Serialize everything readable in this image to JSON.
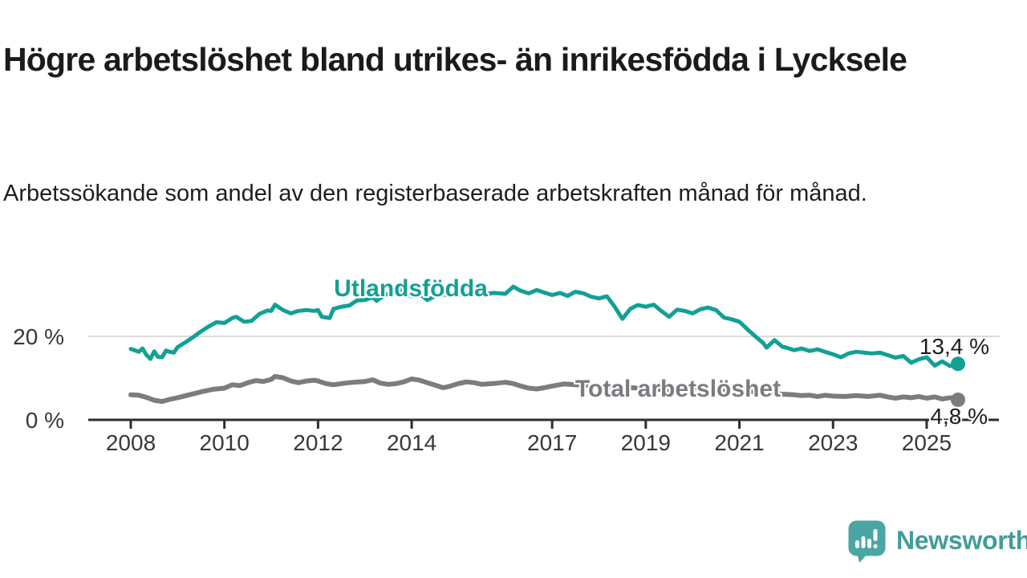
{
  "title": "Högre arbetslöshet bland utrikes- än inrikesfödda i Lycksele",
  "subtitle": "Arbetssökande som andel av den registerbaserade arbetskraften månad för månad.",
  "colors": {
    "accent_teal": "#12A096",
    "series_gray": "#7B7B80",
    "axis": "#2E2E2E",
    "gridline": "#DBDBDB",
    "title_text": "#1B1B1B",
    "tick_text": "#383838",
    "logo_teal": "#4AA6A2"
  },
  "branding": {
    "logo_text": "Newsworthy",
    "logo_icon": "bar-chart-speech-bubble-icon"
  },
  "chart_data": {
    "type": "line",
    "unit": "%",
    "grid": "horizontal-20-only",
    "legend_position": "inline-labels-on-lines",
    "x_axis": {
      "range": [
        2007.9,
        2025.9
      ],
      "ticks": [
        2008,
        2010,
        2012,
        2014,
        2017,
        2019,
        2021,
        2023,
        2025
      ]
    },
    "y_axis": {
      "range": [
        0,
        35
      ],
      "ticks": [
        {
          "value": 0,
          "label": "0 %"
        },
        {
          "value": 20,
          "label": "20 %"
        }
      ]
    },
    "series": [
      {
        "name": "Utlandsfödda",
        "color": "#12A096",
        "stroke_width": 5,
        "end_value": 13.4,
        "end_label": "13,4 %",
        "points": [
          [
            2008.0,
            17.0
          ],
          [
            2008.08,
            16.7
          ],
          [
            2008.17,
            16.3
          ],
          [
            2008.25,
            17.1
          ],
          [
            2008.33,
            15.6
          ],
          [
            2008.42,
            14.6
          ],
          [
            2008.5,
            16.4
          ],
          [
            2008.58,
            15.1
          ],
          [
            2008.67,
            15.0
          ],
          [
            2008.75,
            16.6
          ],
          [
            2008.83,
            16.3
          ],
          [
            2008.92,
            16.1
          ],
          [
            2009.0,
            17.4
          ],
          [
            2009.17,
            18.6
          ],
          [
            2009.33,
            19.8
          ],
          [
            2009.5,
            21.2
          ],
          [
            2009.67,
            22.4
          ],
          [
            2009.83,
            23.4
          ],
          [
            2010.0,
            23.2
          ],
          [
            2010.17,
            24.4
          ],
          [
            2010.25,
            24.7
          ],
          [
            2010.42,
            23.5
          ],
          [
            2010.58,
            23.7
          ],
          [
            2010.75,
            25.4
          ],
          [
            2010.92,
            26.2
          ],
          [
            2011.0,
            26.1
          ],
          [
            2011.08,
            27.6
          ],
          [
            2011.25,
            26.3
          ],
          [
            2011.42,
            25.5
          ],
          [
            2011.58,
            26.1
          ],
          [
            2011.75,
            26.3
          ],
          [
            2011.92,
            26.1
          ],
          [
            2012.0,
            26.3
          ],
          [
            2012.08,
            24.7
          ],
          [
            2012.25,
            24.4
          ],
          [
            2012.33,
            26.6
          ],
          [
            2012.5,
            27.1
          ],
          [
            2012.67,
            27.4
          ],
          [
            2012.83,
            28.6
          ],
          [
            2013.0,
            28.7
          ],
          [
            2013.17,
            29.4
          ],
          [
            2013.25,
            28.5
          ],
          [
            2013.42,
            29.9
          ],
          [
            2013.58,
            30.4
          ],
          [
            2013.75,
            31.2
          ],
          [
            2013.92,
            30.0
          ],
          [
            2014.0,
            29.6
          ],
          [
            2014.08,
            30.3
          ],
          [
            2014.25,
            29.5
          ],
          [
            2014.33,
            28.7
          ],
          [
            2014.5,
            29.7
          ],
          [
            2014.67,
            30.0
          ],
          [
            2014.83,
            29.8
          ],
          [
            2015.0,
            29.9
          ],
          [
            2015.25,
            30.3
          ],
          [
            2015.5,
            30.0
          ],
          [
            2015.75,
            30.4
          ],
          [
            2016.0,
            30.2
          ],
          [
            2016.17,
            31.9
          ],
          [
            2016.33,
            30.9
          ],
          [
            2016.5,
            30.3
          ],
          [
            2016.67,
            31.1
          ],
          [
            2016.83,
            30.5
          ],
          [
            2017.0,
            29.9
          ],
          [
            2017.17,
            30.4
          ],
          [
            2017.33,
            29.7
          ],
          [
            2017.5,
            30.7
          ],
          [
            2017.67,
            30.3
          ],
          [
            2017.83,
            29.5
          ],
          [
            2018.0,
            29.1
          ],
          [
            2018.17,
            29.6
          ],
          [
            2018.33,
            27.2
          ],
          [
            2018.5,
            24.2
          ],
          [
            2018.67,
            26.6
          ],
          [
            2018.83,
            27.5
          ],
          [
            2019.0,
            27.1
          ],
          [
            2019.17,
            27.6
          ],
          [
            2019.33,
            26.1
          ],
          [
            2019.5,
            24.7
          ],
          [
            2019.67,
            26.4
          ],
          [
            2019.83,
            26.1
          ],
          [
            2020.0,
            25.5
          ],
          [
            2020.17,
            26.5
          ],
          [
            2020.33,
            26.9
          ],
          [
            2020.5,
            26.3
          ],
          [
            2020.67,
            24.5
          ],
          [
            2020.83,
            24.1
          ],
          [
            2021.0,
            23.5
          ],
          [
            2021.17,
            21.7
          ],
          [
            2021.33,
            20.1
          ],
          [
            2021.5,
            18.5
          ],
          [
            2021.58,
            17.3
          ],
          [
            2021.75,
            19.1
          ],
          [
            2021.92,
            17.5
          ],
          [
            2022.0,
            17.3
          ],
          [
            2022.17,
            16.7
          ],
          [
            2022.33,
            17.1
          ],
          [
            2022.5,
            16.5
          ],
          [
            2022.67,
            16.9
          ],
          [
            2022.83,
            16.3
          ],
          [
            2023.0,
            15.7
          ],
          [
            2023.17,
            15.0
          ],
          [
            2023.33,
            15.9
          ],
          [
            2023.5,
            16.3
          ],
          [
            2023.67,
            16.1
          ],
          [
            2023.83,
            15.9
          ],
          [
            2024.0,
            16.1
          ],
          [
            2024.17,
            15.5
          ],
          [
            2024.33,
            14.9
          ],
          [
            2024.5,
            15.3
          ],
          [
            2024.67,
            13.7
          ],
          [
            2024.83,
            14.5
          ],
          [
            2025.0,
            15.0
          ],
          [
            2025.17,
            13.0
          ],
          [
            2025.33,
            14.0
          ],
          [
            2025.5,
            12.9
          ],
          [
            2025.67,
            13.4
          ]
        ]
      },
      {
        "name": "Total arbetslöshet",
        "color": "#7B7B80",
        "stroke_width": 6,
        "end_value": 4.8,
        "end_label": "4,8 %",
        "points": [
          [
            2008.0,
            6.0
          ],
          [
            2008.17,
            5.9
          ],
          [
            2008.33,
            5.4
          ],
          [
            2008.5,
            4.7
          ],
          [
            2008.67,
            4.4
          ],
          [
            2008.83,
            4.9
          ],
          [
            2009.0,
            5.3
          ],
          [
            2009.25,
            6.0
          ],
          [
            2009.5,
            6.7
          ],
          [
            2009.75,
            7.3
          ],
          [
            2010.0,
            7.6
          ],
          [
            2010.17,
            8.4
          ],
          [
            2010.33,
            8.2
          ],
          [
            2010.5,
            8.9
          ],
          [
            2010.67,
            9.4
          ],
          [
            2010.83,
            9.2
          ],
          [
            2011.0,
            9.7
          ],
          [
            2011.08,
            10.4
          ],
          [
            2011.25,
            10.1
          ],
          [
            2011.42,
            9.3
          ],
          [
            2011.58,
            8.9
          ],
          [
            2011.75,
            9.3
          ],
          [
            2011.92,
            9.5
          ],
          [
            2012.0,
            9.3
          ],
          [
            2012.17,
            8.7
          ],
          [
            2012.33,
            8.4
          ],
          [
            2012.5,
            8.7
          ],
          [
            2012.75,
            9.0
          ],
          [
            2013.0,
            9.2
          ],
          [
            2013.17,
            9.6
          ],
          [
            2013.33,
            8.8
          ],
          [
            2013.5,
            8.5
          ],
          [
            2013.67,
            8.7
          ],
          [
            2013.83,
            9.1
          ],
          [
            2014.0,
            9.8
          ],
          [
            2014.17,
            9.5
          ],
          [
            2014.33,
            8.9
          ],
          [
            2014.5,
            8.3
          ],
          [
            2014.67,
            7.7
          ],
          [
            2014.83,
            8.1
          ],
          [
            2015.0,
            8.7
          ],
          [
            2015.17,
            9.1
          ],
          [
            2015.33,
            8.9
          ],
          [
            2015.5,
            8.5
          ],
          [
            2015.75,
            8.7
          ],
          [
            2016.0,
            9.0
          ],
          [
            2016.17,
            8.7
          ],
          [
            2016.33,
            8.1
          ],
          [
            2016.5,
            7.6
          ],
          [
            2016.67,
            7.4
          ],
          [
            2016.83,
            7.7
          ],
          [
            2017.0,
            8.1
          ],
          [
            2017.25,
            8.6
          ],
          [
            2017.5,
            8.4
          ],
          [
            2018.0,
            8.1
          ],
          [
            2018.5,
            7.8
          ],
          [
            2019.0,
            7.5
          ],
          [
            2019.5,
            7.2
          ],
          [
            2020.0,
            7.8
          ],
          [
            2020.5,
            7.4
          ],
          [
            2021.0,
            7.0
          ],
          [
            2021.5,
            6.5
          ],
          [
            2021.83,
            6.2
          ],
          [
            2022.17,
            6.0
          ],
          [
            2022.33,
            5.8
          ],
          [
            2022.5,
            5.9
          ],
          [
            2022.67,
            5.6
          ],
          [
            2022.83,
            5.9
          ],
          [
            2023.0,
            5.7
          ],
          [
            2023.25,
            5.6
          ],
          [
            2023.5,
            5.8
          ],
          [
            2023.75,
            5.6
          ],
          [
            2024.0,
            5.9
          ],
          [
            2024.17,
            5.5
          ],
          [
            2024.33,
            5.2
          ],
          [
            2024.5,
            5.5
          ],
          [
            2024.67,
            5.3
          ],
          [
            2024.83,
            5.6
          ],
          [
            2025.0,
            5.2
          ],
          [
            2025.17,
            5.5
          ],
          [
            2025.33,
            5.0
          ],
          [
            2025.5,
            5.3
          ],
          [
            2025.67,
            4.8
          ]
        ]
      }
    ]
  }
}
